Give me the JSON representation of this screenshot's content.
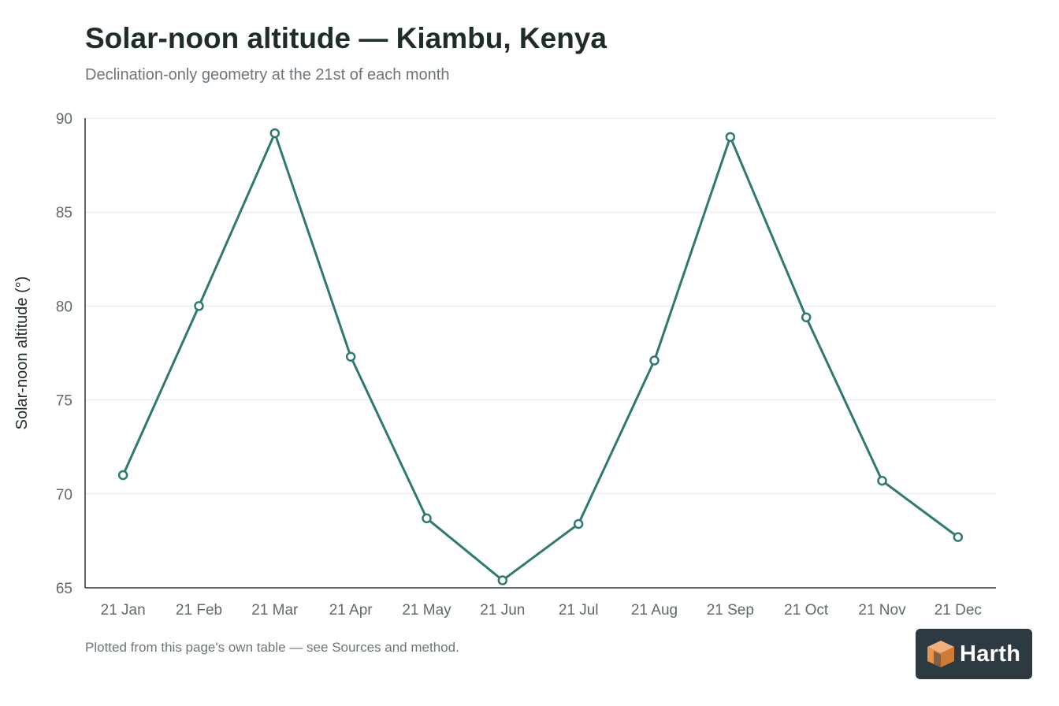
{
  "colors": {
    "series": "#2e7a70",
    "marker_fill": "#ffffff",
    "grid": "#e6e9e8",
    "axis": "#2a3431",
    "brand_badge": "#2e3a41",
    "brand_logo": "#e8934e"
  },
  "footnote": "Plotted from this page's own table — see Sources and method.",
  "brand": {
    "name": "Harth",
    "logo_icon": "isometric-cube-logo"
  },
  "chart_data": {
    "type": "line",
    "title": "Solar-noon altitude — Kiambu, Kenya",
    "subtitle": "Declination-only geometry at the 21st of each month",
    "xlabel": "",
    "ylabel": "Solar-noon altitude (°)",
    "ylim": [
      65,
      90
    ],
    "yticks": [
      65,
      70,
      75,
      80,
      85,
      90
    ],
    "grid": "horizontal",
    "legend": "none",
    "categories": [
      "21 Jan",
      "21 Feb",
      "21 Mar",
      "21 Apr",
      "21 May",
      "21 Jun",
      "21 Jul",
      "21 Aug",
      "21 Sep",
      "21 Oct",
      "21 Nov",
      "21 Dec"
    ],
    "series": [
      {
        "values": [
          71.0,
          80.0,
          89.2,
          77.3,
          68.7,
          65.4,
          68.4,
          77.1,
          89.0,
          79.4,
          70.7,
          67.7
        ]
      }
    ]
  }
}
